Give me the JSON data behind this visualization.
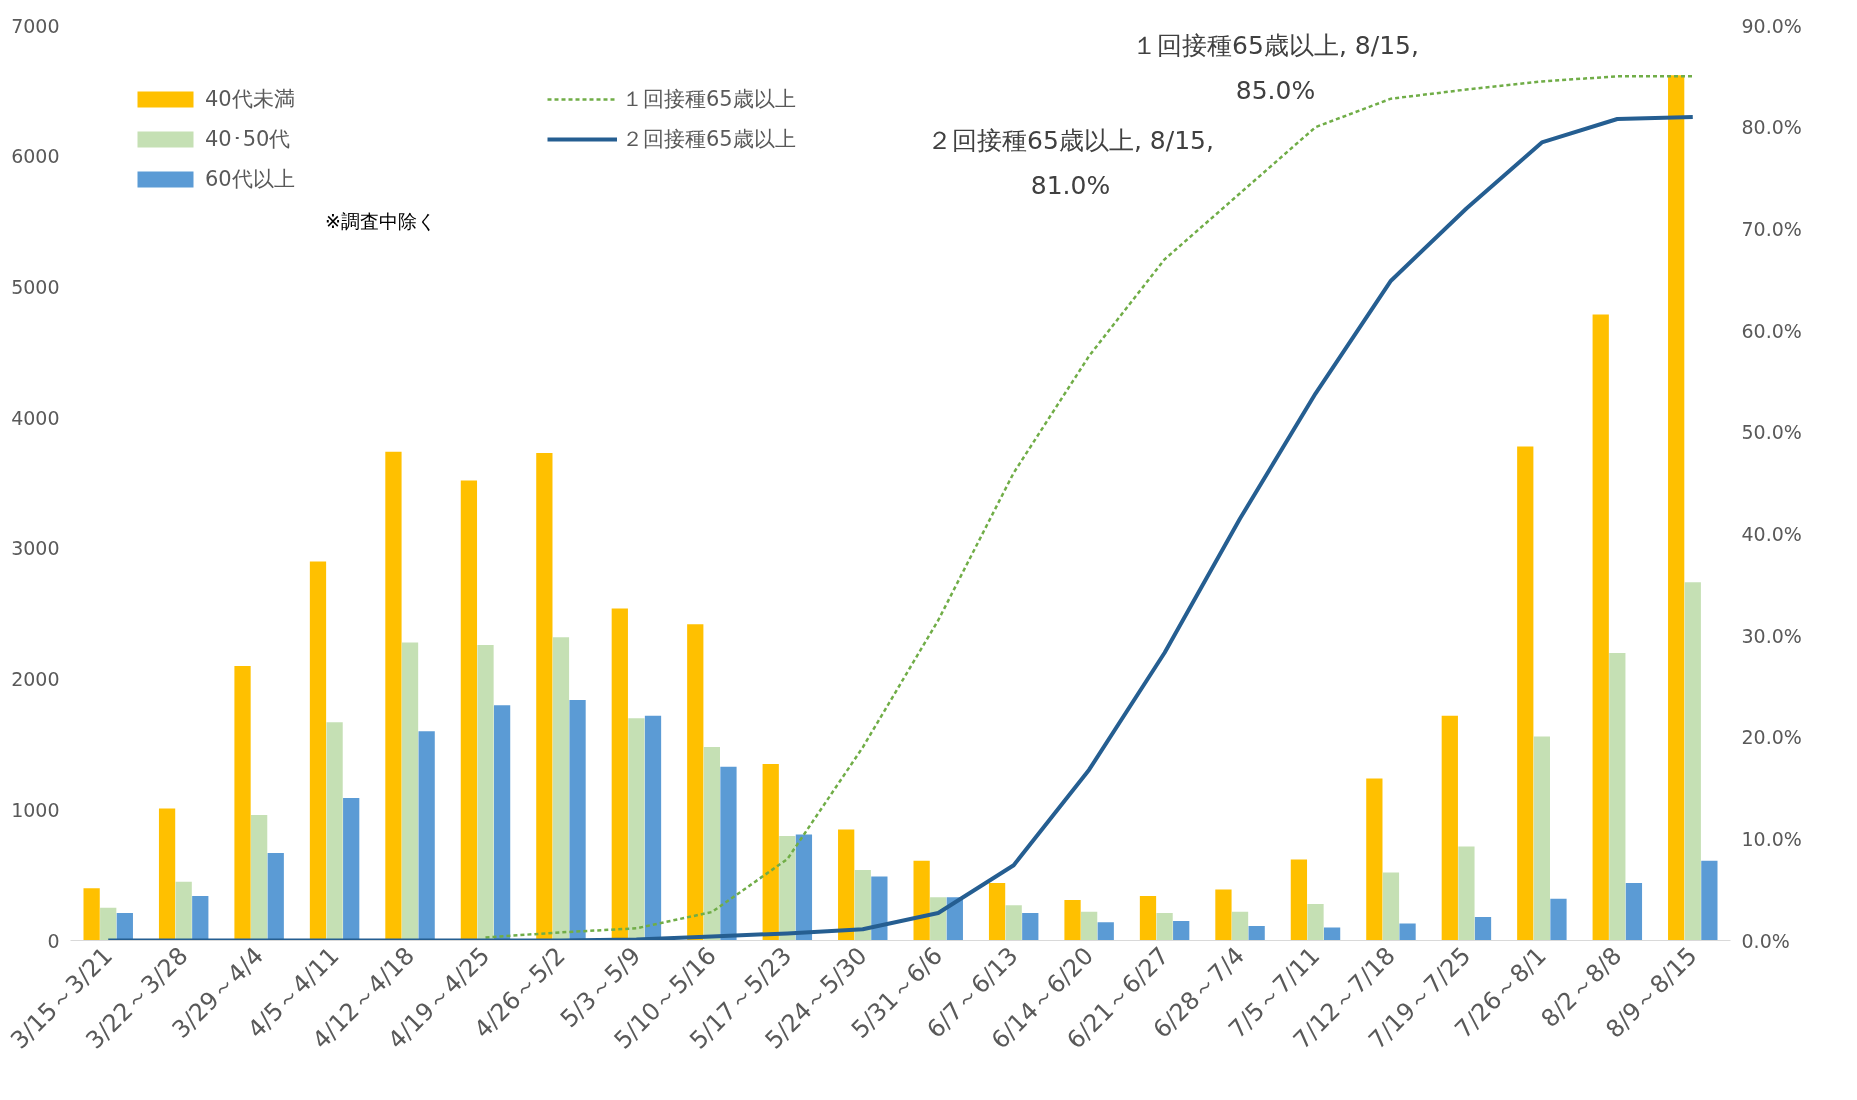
{
  "chart_data": {
    "type": "bar",
    "categories": [
      "3/15～3/21",
      "3/22～3/28",
      "3/29～4/4",
      "4/5～4/11",
      "4/12～4/18",
      "4/19～4/25",
      "4/26～5/2",
      "5/3～5/9",
      "5/10～5/16",
      "5/17～5/23",
      "5/24～5/30",
      "5/31～6/6",
      "6/7～6/13",
      "6/14～6/20",
      "6/21～6/27",
      "6/28～7/4",
      "7/5～7/11",
      "7/12～7/18",
      "7/19～7/25",
      "7/26～8/1",
      "8/2～8/8",
      "8/9～8/15"
    ],
    "series": [
      {
        "name": "40代未満",
        "color": "#ffc000",
        "values": [
          400,
          1010,
          2100,
          2900,
          3740,
          3520,
          3730,
          2540,
          2420,
          1350,
          850,
          610,
          440,
          310,
          340,
          390,
          620,
          1240,
          1720,
          3780,
          4790,
          6620
        ]
      },
      {
        "name": "40･50代",
        "color": "#c5e0b4",
        "values": [
          250,
          450,
          960,
          1670,
          2280,
          2260,
          2320,
          1700,
          1480,
          800,
          540,
          330,
          270,
          220,
          210,
          220,
          280,
          520,
          720,
          1560,
          2200,
          2740
        ]
      },
      {
        "name": "60代以上",
        "color": "#5b9bd5",
        "values": [
          210,
          340,
          670,
          1090,
          1600,
          1800,
          1840,
          1720,
          1330,
          810,
          490,
          330,
          210,
          140,
          150,
          110,
          100,
          130,
          180,
          320,
          440,
          610
        ]
      },
      {
        "name": "１回接種65歳以上",
        "color": "#70ad47",
        "type": "line",
        "axis": "y2",
        "line_style": "dashed",
        "values": [
          null,
          null,
          null,
          null,
          null,
          0.3,
          0.8,
          1.2,
          2.8,
          8.0,
          19.0,
          31.5,
          46.0,
          57.5,
          67.0,
          73.5,
          80.0,
          82.8,
          83.7,
          84.5,
          85.0,
          85.0
        ]
      },
      {
        "name": "２回接種65歳以上",
        "color": "#255e91",
        "type": "line",
        "axis": "y2",
        "line_style": "solid",
        "values": [
          0,
          0,
          0,
          0,
          0,
          0,
          0,
          0.1,
          0.4,
          0.7,
          1.1,
          2.7,
          7.4,
          16.8,
          28.3,
          41.5,
          53.8,
          64.9,
          72.0,
          78.5,
          80.8,
          81.0
        ]
      }
    ],
    "ylim": [
      0,
      7000
    ],
    "yticks": [
      0,
      1000,
      2000,
      3000,
      4000,
      5000,
      6000,
      7000
    ],
    "y2lim": [
      0,
      90
    ],
    "y2ticks": [
      {
        "value": 0,
        "label": "0.0%"
      },
      {
        "value": 10,
        "label": "10.0%"
      },
      {
        "value": 20,
        "label": "20.0%"
      },
      {
        "value": 30,
        "label": "30.0%"
      },
      {
        "value": 40,
        "label": "40.0%"
      },
      {
        "value": 50,
        "label": "50.0%"
      },
      {
        "value": 60,
        "label": "60.0%"
      },
      {
        "value": 70,
        "label": "70.0%"
      },
      {
        "value": 80,
        "label": "80.0%"
      },
      {
        "value": 90,
        "label": "90.0%"
      }
    ],
    "legend": "top left",
    "grid": false,
    "annotations": [
      "１回接種65歳以上, 8/15,\n85.0%",
      "２回接種65歳以上, 8/15,\n81.0%",
      "※調査中除く"
    ]
  }
}
